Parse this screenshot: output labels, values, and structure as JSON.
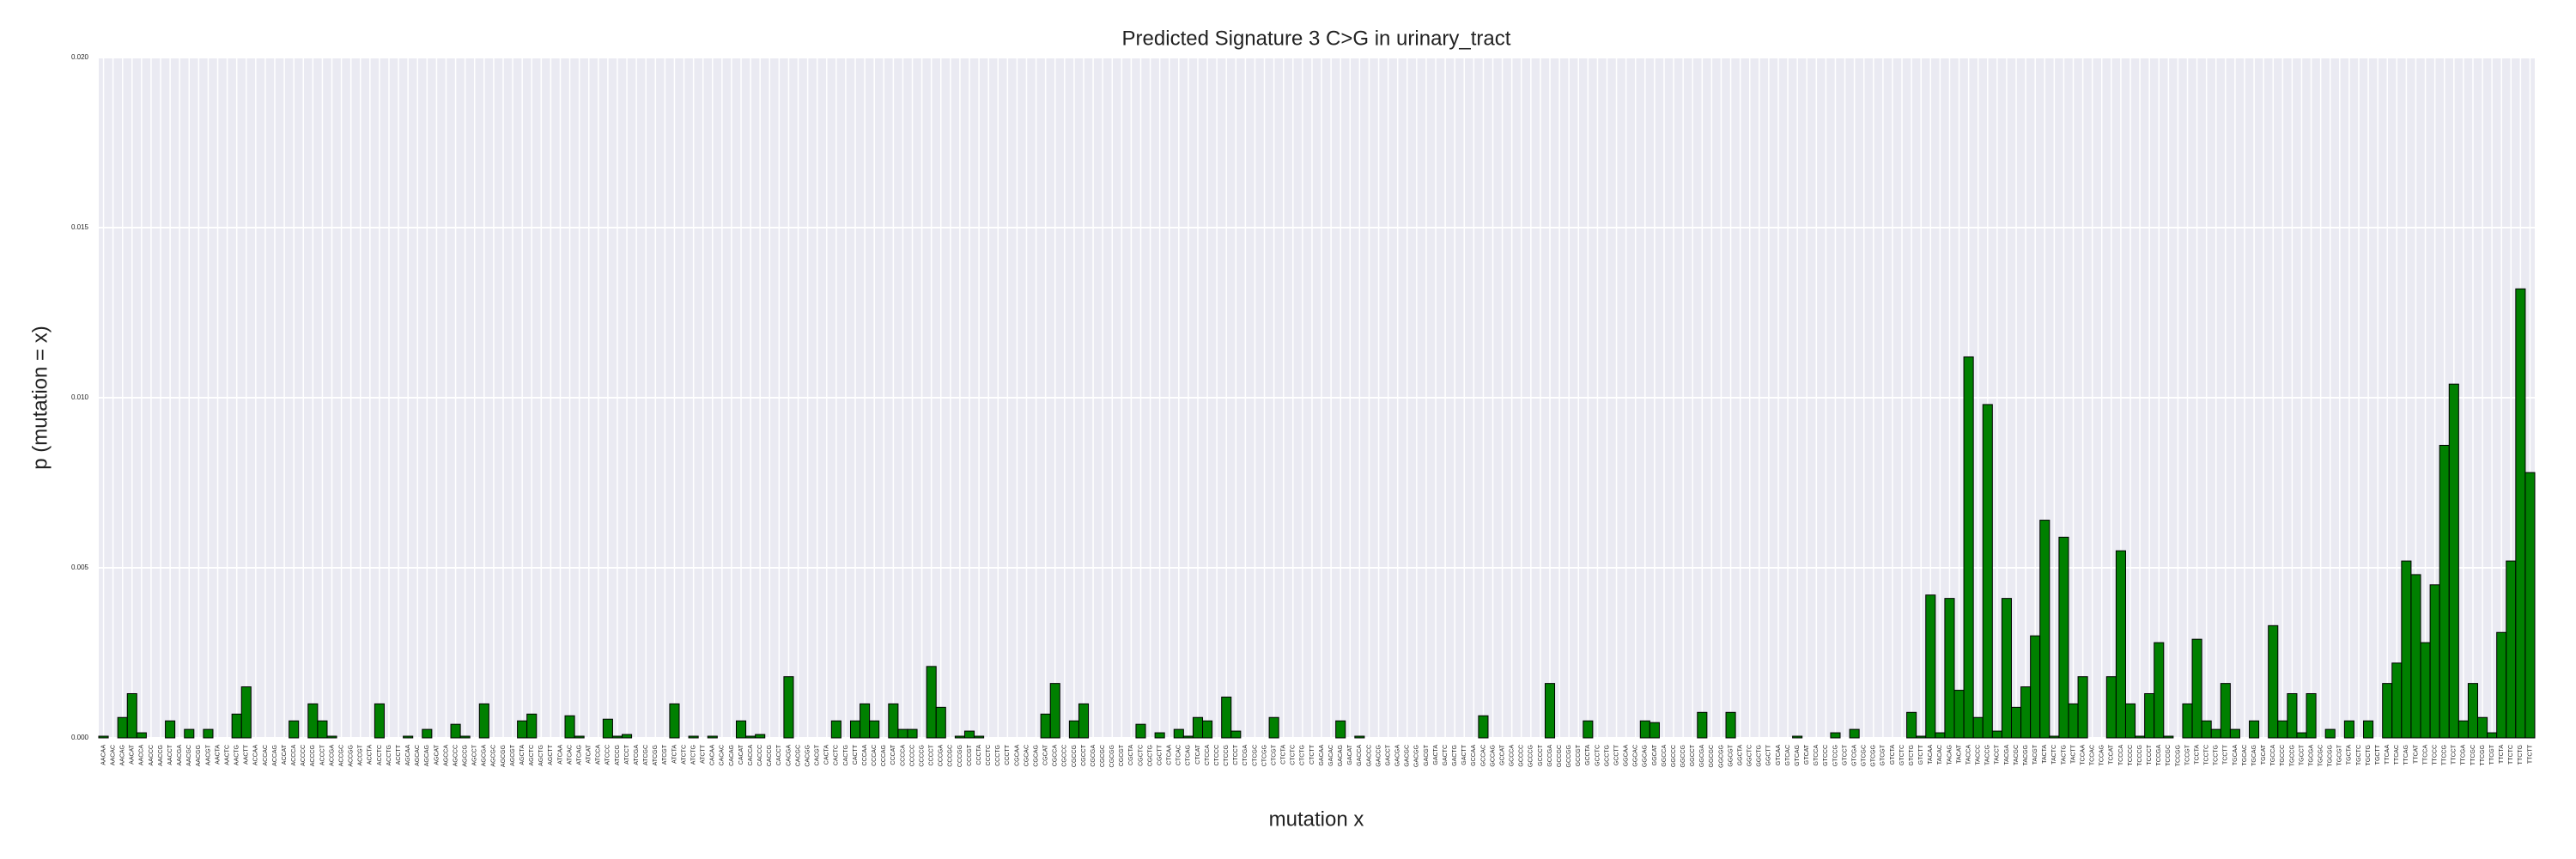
{
  "chart_data": {
    "type": "bar",
    "title": "Predicted Signature 3 C>G in urinary_tract",
    "xlabel": "mutation x",
    "ylabel": "p (mutation = x)",
    "color": "#008000",
    "grid": true,
    "ylim": [
      0,
      0.02
    ],
    "yticks": [
      {
        "value": 0,
        "label": "0.000"
      },
      {
        "value": 0.005,
        "label": "0.005"
      },
      {
        "value": 0.01,
        "label": "0.010"
      },
      {
        "value": 0.015,
        "label": "0.015"
      },
      {
        "value": 0.02,
        "label": "0.020"
      }
    ],
    "categories": [
      "AACAA",
      "AACAC",
      "AACAG",
      "AACAT",
      "AACCA",
      "AACCC",
      "AACCG",
      "AACCT",
      "AACGA",
      "AACGC",
      "AACGG",
      "AACGT",
      "AACTA",
      "AACTC",
      "AACTG",
      "AACTT",
      "ACCAA",
      "ACCAC",
      "ACCAG",
      "ACCAT",
      "ACCCA",
      "ACCCC",
      "ACCCG",
      "ACCCT",
      "ACCGA",
      "ACCGC",
      "ACCGG",
      "ACCGT",
      "ACCTA",
      "ACCTC",
      "ACCTG",
      "ACCTT",
      "AGCAA",
      "AGCAC",
      "AGCAG",
      "AGCAT",
      "AGCCA",
      "AGCCC",
      "AGCCG",
      "AGCCT",
      "AGCGA",
      "AGCGC",
      "AGCGG",
      "AGCGT",
      "AGCTA",
      "AGCTC",
      "AGCTG",
      "AGCTT",
      "ATCAA",
      "ATCAC",
      "ATCAG",
      "ATCAT",
      "ATCCA",
      "ATCCC",
      "ATCCG",
      "ATCCT",
      "ATCGA",
      "ATCGC",
      "ATCGG",
      "ATCGT",
      "ATCTA",
      "ATCTC",
      "ATCTG",
      "ATCTT",
      "CACAA",
      "CACAC",
      "CACAG",
      "CACAT",
      "CACCA",
      "CACCC",
      "CACCG",
      "CACCT",
      "CACGA",
      "CACGC",
      "CACGG",
      "CACGT",
      "CACTA",
      "CACTC",
      "CACTG",
      "CACTT",
      "CCCAA",
      "CCCAC",
      "CCCAG",
      "CCCAT",
      "CCCCA",
      "CCCCC",
      "CCCCG",
      "CCCCT",
      "CCCGA",
      "CCCGC",
      "CCCGG",
      "CCCGT",
      "CCCTA",
      "CCCTC",
      "CCCTG",
      "CCCTT",
      "CGCAA",
      "CGCAC",
      "CGCAG",
      "CGCAT",
      "CGCCA",
      "CGCCC",
      "CGCCG",
      "CGCCT",
      "CGCGA",
      "CGCGC",
      "CGCGG",
      "CGCGT",
      "CGCTA",
      "CGCTC",
      "CGCTG",
      "CGCTT",
      "CTCAA",
      "CTCAC",
      "CTCAG",
      "CTCAT",
      "CTCCA",
      "CTCCC",
      "CTCCG",
      "CTCCT",
      "CTCGA",
      "CTCGC",
      "CTCGG",
      "CTCGT",
      "CTCTA",
      "CTCTC",
      "CTCTG",
      "CTCTT",
      "GACAA",
      "GACAC",
      "GACAG",
      "GACAT",
      "GACCA",
      "GACCC",
      "GACCG",
      "GACCT",
      "GACGA",
      "GACGC",
      "GACGG",
      "GACGT",
      "GACTA",
      "GACTC",
      "GACTG",
      "GACTT",
      "GCCAA",
      "GCCAC",
      "GCCAG",
      "GCCAT",
      "GCCCA",
      "GCCCC",
      "GCCCG",
      "GCCCT",
      "GCCGA",
      "GCCGC",
      "GCCGG",
      "GCCGT",
      "GCCTA",
      "GCCTC",
      "GCCTG",
      "GCCTT",
      "GGCAA",
      "GGCAC",
      "GGCAG",
      "GGCAT",
      "GGCCA",
      "GGCCC",
      "GGCCG",
      "GGCCT",
      "GGCGA",
      "GGCGC",
      "GGCGG",
      "GGCGT",
      "GGCTA",
      "GGCTC",
      "GGCTG",
      "GGCTT",
      "GTCAA",
      "GTCAC",
      "GTCAG",
      "GTCAT",
      "GTCCA",
      "GTCCC",
      "GTCCG",
      "GTCCT",
      "GTCGA",
      "GTCGC",
      "GTCGG",
      "GTCGT",
      "GTCTA",
      "GTCTC",
      "GTCTG",
      "GTCTT",
      "TACAA",
      "TACAC",
      "TACAG",
      "TACAT",
      "TACCA",
      "TACCC",
      "TACCG",
      "TACCT",
      "TACGA",
      "TACGC",
      "TACGG",
      "TACGT",
      "TACTA",
      "TACTC",
      "TACTG",
      "TACTT",
      "TCCAA",
      "TCCAC",
      "TCCAG",
      "TCCAT",
      "TCCCA",
      "TCCCC",
      "TCCCG",
      "TCCCT",
      "TCCGA",
      "TCCGC",
      "TCCGG",
      "TCCGT",
      "TCCTA",
      "TCCTC",
      "TCCTG",
      "TCCTT",
      "TGCAA",
      "TGCAC",
      "TGCAG",
      "TGCAT",
      "TGCCA",
      "TGCCC",
      "TGCCG",
      "TGCCT",
      "TGCGA",
      "TGCGC",
      "TGCGG",
      "TGCGT",
      "TGCTA",
      "TGCTC",
      "TGCTG",
      "TGCTT",
      "TTCAA",
      "TTCAC",
      "TTCAG",
      "TTCAT",
      "TTCCA",
      "TTCCC",
      "TTCCG",
      "TTCCT",
      "TTCGA",
      "TTCGC",
      "TTCGG",
      "TTCGT",
      "TTCTA",
      "TTCTC",
      "TTCTG",
      "TTCTT"
    ],
    "values": [
      5e-05,
      0,
      0.0006,
      0.0013,
      0.00015,
      0,
      0,
      0.0005,
      0,
      0.00025,
      0,
      0.00025,
      0,
      0,
      0.0007,
      0.0015,
      0,
      0,
      0,
      0,
      0.0005,
      0,
      0.001,
      0.0005,
      5e-05,
      0,
      0,
      0,
      0,
      0.001,
      0,
      0,
      5e-05,
      0,
      0.00025,
      0,
      0,
      0.0004,
      5e-05,
      0,
      0.001,
      0,
      0,
      0,
      0.0005,
      0.0007,
      0,
      0,
      0,
      0.00065,
      5e-05,
      0,
      0,
      0.00055,
      5e-05,
      0.0001,
      0,
      0,
      0,
      0,
      0.001,
      0,
      5e-05,
      0,
      5e-05,
      0,
      0,
      0.0005,
      5e-05,
      0.0001,
      0,
      0,
      0.0018,
      0,
      0,
      0,
      0,
      0.0005,
      0,
      0.0005,
      0.001,
      0.0005,
      0,
      0.001,
      0.00025,
      0.00025,
      0,
      0.0021,
      0.0009,
      0,
      5e-05,
      0.0002,
      5e-05,
      0,
      0,
      0,
      0,
      0,
      0,
      0.0007,
      0.0016,
      0,
      0.0005,
      0.001,
      0,
      0,
      0,
      0,
      0,
      0.0004,
      0,
      0.00015,
      0,
      0.00025,
      5e-05,
      0.0006,
      0.0005,
      0,
      0.0012,
      0.0002,
      0,
      0,
      0,
      0.0006,
      0,
      0,
      0,
      0,
      0,
      0,
      0.0005,
      0,
      5e-05,
      0,
      0,
      0,
      0,
      0,
      0,
      0,
      0,
      0,
      0,
      0,
      0,
      0.00065,
      0,
      0,
      0,
      0,
      0,
      0,
      0.0016,
      0,
      0,
      0,
      0.0005,
      0,
      0,
      0,
      0,
      0,
      0.0005,
      0.00045,
      0,
      0,
      0,
      0,
      0.00075,
      0,
      0,
      0.00075,
      0,
      0,
      0,
      0,
      0,
      0,
      5e-05,
      0,
      0,
      0,
      0.00015,
      0,
      0.00025,
      0,
      0,
      0,
      0,
      0,
      0.00075,
      5e-05,
      0.0042,
      0.00015,
      0.0041,
      0.0014,
      0.0112,
      0.0006,
      0.0098,
      0.0002,
      0.0041,
      0.0009,
      0.0015,
      0.003,
      0.0064,
      5e-05,
      0.0059,
      0.001,
      0.0018,
      0,
      0,
      0.0018,
      0.0055,
      0.001,
      5e-05,
      0.0013,
      0.0028,
      5e-05,
      0,
      0.001,
      0.0029,
      0.0005,
      0.00025,
      0.0016,
      0.00025,
      0,
      0.0005,
      0,
      0.0033,
      0.0005,
      0.0013,
      0.00015,
      0.0013,
      0,
      0.00025,
      0,
      0.0005,
      0,
      0.0005,
      0,
      0.0016,
      0.0022,
      0.0052,
      0.0048,
      0.0028,
      0.0045,
      0.0086,
      0.0104,
      0.0005,
      0.0016,
      0.0006,
      0.00015,
      0.0031,
      0.0052,
      0.0132,
      0.0078
    ]
  }
}
